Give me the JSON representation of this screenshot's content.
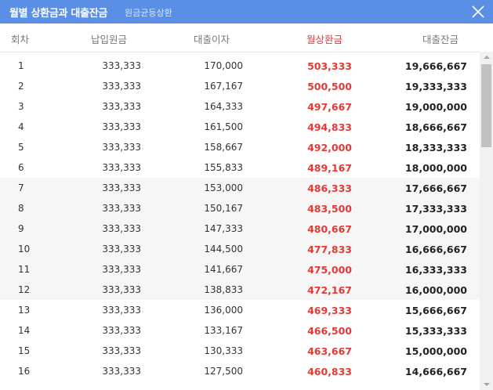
{
  "window": {
    "title": "월별 상환금과 대출잔금",
    "subtitle": "원금균등상환"
  },
  "colors": {
    "titlebar": "#5b8fe6",
    "accent_red": "#e53935"
  },
  "icons": {
    "close": "close-icon"
  },
  "table": {
    "headers": {
      "round": "회차",
      "principal": "납입원금",
      "interest": "대출이자",
      "monthly": "월상환금",
      "balance": "대출잔금"
    },
    "rows": [
      {
        "round": "1",
        "principal": "333,333",
        "interest": "170,000",
        "monthly": "503,333",
        "balance": "19,666,667"
      },
      {
        "round": "2",
        "principal": "333,333",
        "interest": "167,167",
        "monthly": "500,500",
        "balance": "19,333,333"
      },
      {
        "round": "3",
        "principal": "333,333",
        "interest": "164,333",
        "monthly": "497,667",
        "balance": "19,000,000"
      },
      {
        "round": "4",
        "principal": "333,333",
        "interest": "161,500",
        "monthly": "494,833",
        "balance": "18,666,667"
      },
      {
        "round": "5",
        "principal": "333,333",
        "interest": "158,667",
        "monthly": "492,000",
        "balance": "18,333,333"
      },
      {
        "round": "6",
        "principal": "333,333",
        "interest": "155,833",
        "monthly": "489,167",
        "balance": "18,000,000"
      },
      {
        "round": "7",
        "principal": "333,333",
        "interest": "153,000",
        "monthly": "486,333",
        "balance": "17,666,667"
      },
      {
        "round": "8",
        "principal": "333,333",
        "interest": "150,167",
        "monthly": "483,500",
        "balance": "17,333,333"
      },
      {
        "round": "9",
        "principal": "333,333",
        "interest": "147,333",
        "monthly": "480,667",
        "balance": "17,000,000"
      },
      {
        "round": "10",
        "principal": "333,333",
        "interest": "144,500",
        "monthly": "477,833",
        "balance": "16,666,667"
      },
      {
        "round": "11",
        "principal": "333,333",
        "interest": "141,667",
        "monthly": "475,000",
        "balance": "16,333,333"
      },
      {
        "round": "12",
        "principal": "333,333",
        "interest": "138,833",
        "monthly": "472,167",
        "balance": "16,000,000"
      },
      {
        "round": "13",
        "principal": "333,333",
        "interest": "136,000",
        "monthly": "469,333",
        "balance": "15,666,667"
      },
      {
        "round": "14",
        "principal": "333,333",
        "interest": "133,167",
        "monthly": "466,500",
        "balance": "15,333,333"
      },
      {
        "round": "15",
        "principal": "333,333",
        "interest": "130,333",
        "monthly": "463,667",
        "balance": "15,000,000"
      },
      {
        "round": "16",
        "principal": "333,333",
        "interest": "127,500",
        "monthly": "460,833",
        "balance": "14,666,667"
      }
    ],
    "shaded_rows": [
      7,
      8,
      9,
      10,
      11,
      12
    ]
  }
}
